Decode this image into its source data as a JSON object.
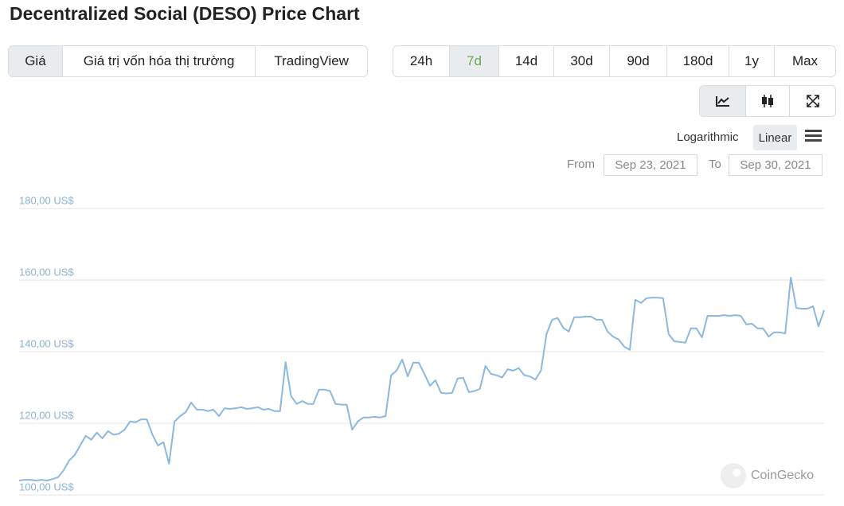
{
  "title": "Decentralized Social (DESO) Price Chart",
  "tabs": [
    "Giá",
    "Giá trị vốn hóa thị trường",
    "TradingView"
  ],
  "ranges": [
    "24h",
    "7d",
    "14d",
    "30d",
    "90d",
    "180d",
    "1y",
    "Max"
  ],
  "scale": [
    "Logarithmic",
    "Linear"
  ],
  "date_range": {
    "from_label": "From",
    "from": "Sep 23, 2021",
    "to_label": "To",
    "to": "Sep 30, 2021"
  },
  "watermark": "CoinGecko",
  "chart_data": {
    "type": "line",
    "color": "#8cb8df",
    "grid": true,
    "ylim": [
      100,
      180
    ],
    "yticks": [
      {
        "value": 100,
        "label": "100,00 US$"
      },
      {
        "value": 120,
        "label": "120,00 US$"
      },
      {
        "value": 140,
        "label": "140,00 US$"
      },
      {
        "value": 160,
        "label": "160,00 US$"
      },
      {
        "value": 180,
        "label": "180,00 US$"
      }
    ],
    "values": [
      104.0,
      104.2,
      104.2,
      104.0,
      104.2,
      104.0,
      104.4,
      104.9,
      106.8,
      109.6,
      111.1,
      113.8,
      116.5,
      115.4,
      117.4,
      115.8,
      117.8,
      116.8,
      117.1,
      118.2,
      120.5,
      120.3,
      121.1,
      121.1,
      116.9,
      113.8,
      114.7,
      108.7,
      120.5,
      122.0,
      123.1,
      125.8,
      123.8,
      123.8,
      123.4,
      123.8,
      122.0,
      124.2,
      124.0,
      124.2,
      124.5,
      124.0,
      124.2,
      124.5,
      123.8,
      124.0,
      123.4,
      123.4,
      137.1,
      127.6,
      125.4,
      126.2,
      125.4,
      125.4,
      129.4,
      129.4,
      129.0,
      125.4,
      125.2,
      125.2,
      118.2,
      120.5,
      121.6,
      121.6,
      121.8,
      121.6,
      122.0,
      133.4,
      134.7,
      137.8,
      133.1,
      136.9,
      136.9,
      133.8,
      130.5,
      132.0,
      128.5,
      128.3,
      128.5,
      132.5,
      132.7,
      128.7,
      129.0,
      129.6,
      136.0,
      133.8,
      133.4,
      132.8,
      135.1,
      134.7,
      135.4,
      133.4,
      133.1,
      132.2,
      134.7,
      144.9,
      148.9,
      149.4,
      146.7,
      145.6,
      149.6,
      149.6,
      149.8,
      149.8,
      148.9,
      148.9,
      145.6,
      144.2,
      143.4,
      141.4,
      140.5,
      154.5,
      153.6,
      154.9,
      155.1,
      155.1,
      154.9,
      144.9,
      142.9,
      142.7,
      142.5,
      146.5,
      146.5,
      144.0,
      150.0,
      150.0,
      150.0,
      150.2,
      150.0,
      150.2,
      150.0,
      147.6,
      147.8,
      146.5,
      146.5,
      144.2,
      145.4,
      145.4,
      145.1,
      160.7,
      152.2,
      152.0,
      152.0,
      152.7,
      147.1,
      151.6
    ]
  }
}
